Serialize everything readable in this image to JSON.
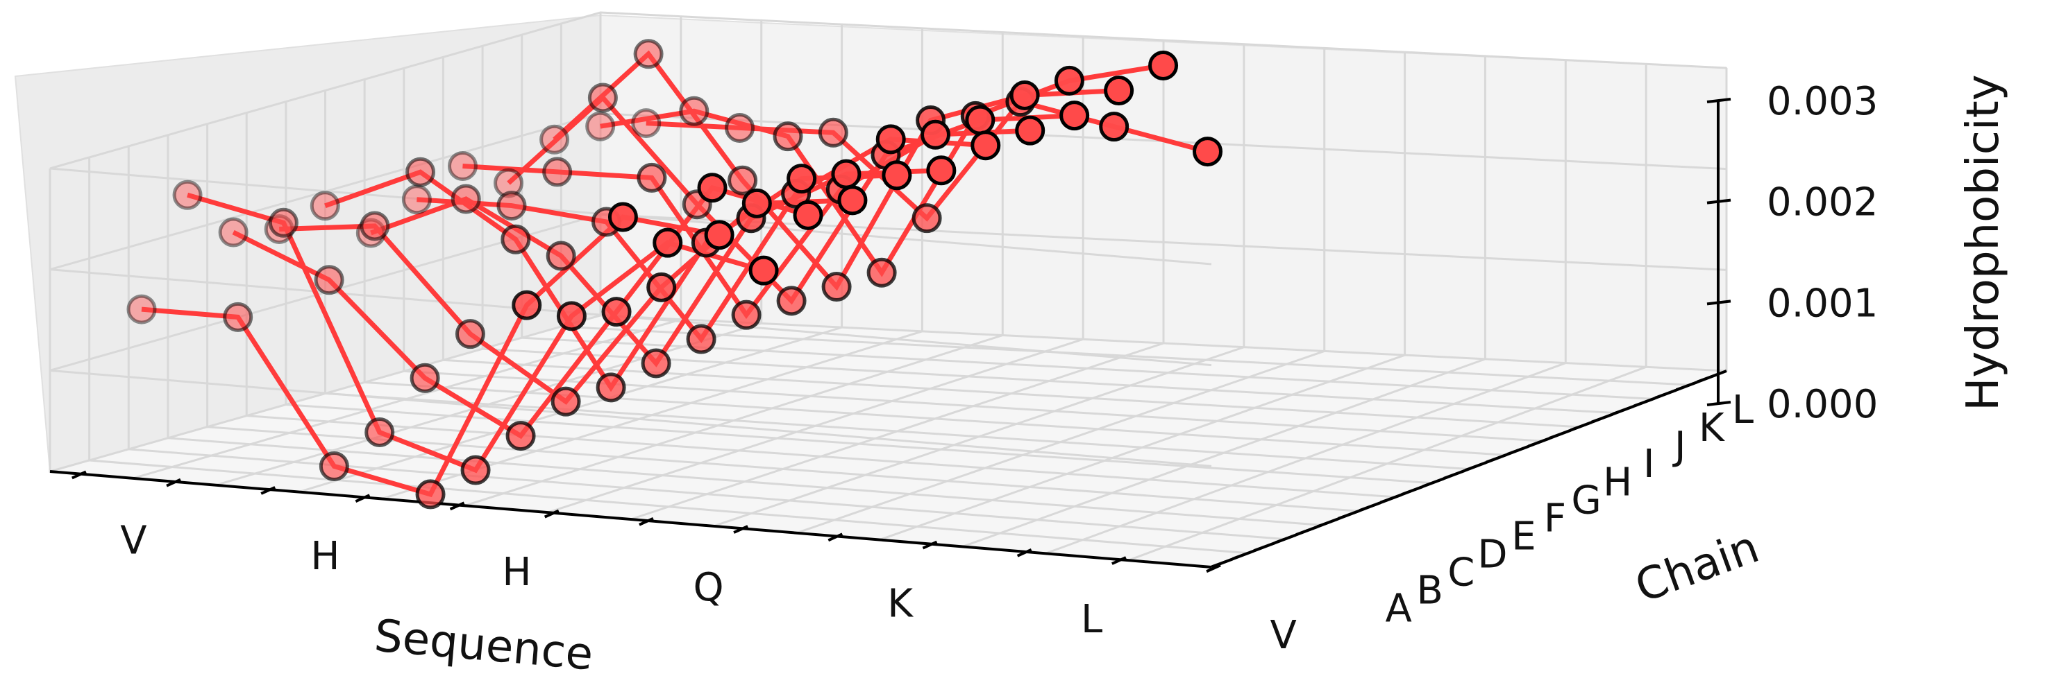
{
  "chart_data": {
    "type": "line",
    "projection": "3d",
    "xlabel": "Sequence",
    "ylabel": "Chain",
    "zlabel": "Hydrophobicity",
    "x_tick_labels": [
      "V",
      "H",
      "H",
      "Q",
      "K",
      "L",
      "V"
    ],
    "y_tick_labels": [
      "A",
      "B",
      "C",
      "D",
      "E",
      "F",
      "G",
      "H",
      "I",
      "J",
      "K",
      "L"
    ],
    "z_tick_labels": [
      "0.000",
      "0.001",
      "0.002",
      "0.003"
    ],
    "zlim": [
      0,
      0.003
    ],
    "grid": true,
    "line_color": "#ff3b3b",
    "marker_color": "#ff4a4a",
    "series": [
      {
        "chain": "A",
        "values": [
          0.0016,
          0.0016,
          0.0002,
          0.0,
          0.00195,
          0.0029,
          0.0028
        ]
      },
      {
        "chain": "B",
        "values": [
          0.0026,
          0.0024,
          0.0004,
          0.0001,
          0.0017,
          0.0025,
          0.0023
        ]
      },
      {
        "chain": "C",
        "values": [
          0.0021,
          0.0017,
          0.0008,
          0.0003,
          0.0016,
          0.0029,
          0.0027
        ]
      },
      {
        "chain": "D",
        "values": [
          0.002,
          0.0021,
          0.0011,
          0.0005,
          0.0017,
          0.0026,
          0.0027
        ]
      },
      {
        "chain": "E",
        "values": [
          0.0021,
          0.0025,
          0.0019,
          0.0005,
          0.002,
          0.0027,
          0.0028
        ]
      },
      {
        "chain": "F",
        "values": [
          0.0017,
          0.0021,
          0.0016,
          0.0006,
          0.0021,
          0.0026,
          0.0027
        ]
      },
      {
        "chain": "G",
        "values": [
          0.0019,
          0.0019,
          0.0018,
          0.0007,
          0.0022,
          0.0028,
          0.0028
        ]
      },
      {
        "chain": "H",
        "values": [
          0.0021,
          0.0021,
          0.0021,
          0.0008,
          0.0021,
          0.0027,
          0.0028
        ]
      },
      {
        "chain": "I",
        "values": [
          0.0018,
          0.0027,
          0.0017,
          0.0008,
          0.0023,
          0.0027,
          0.0028
        ]
      },
      {
        "chain": "J",
        "values": [
          0.0021,
          0.003,
          0.0018,
          0.0008,
          0.0025,
          0.0028,
          0.0029
        ]
      },
      {
        "chain": "K",
        "values": [
          0.0021,
          0.0023,
          0.0021,
          0.0008,
          0.0024,
          0.0028,
          0.003
        ]
      },
      {
        "chain": "L",
        "values": [
          0.002,
          0.002,
          0.002,
          0.0012,
          0.0024,
          0.0022,
          0.002
        ]
      }
    ]
  }
}
